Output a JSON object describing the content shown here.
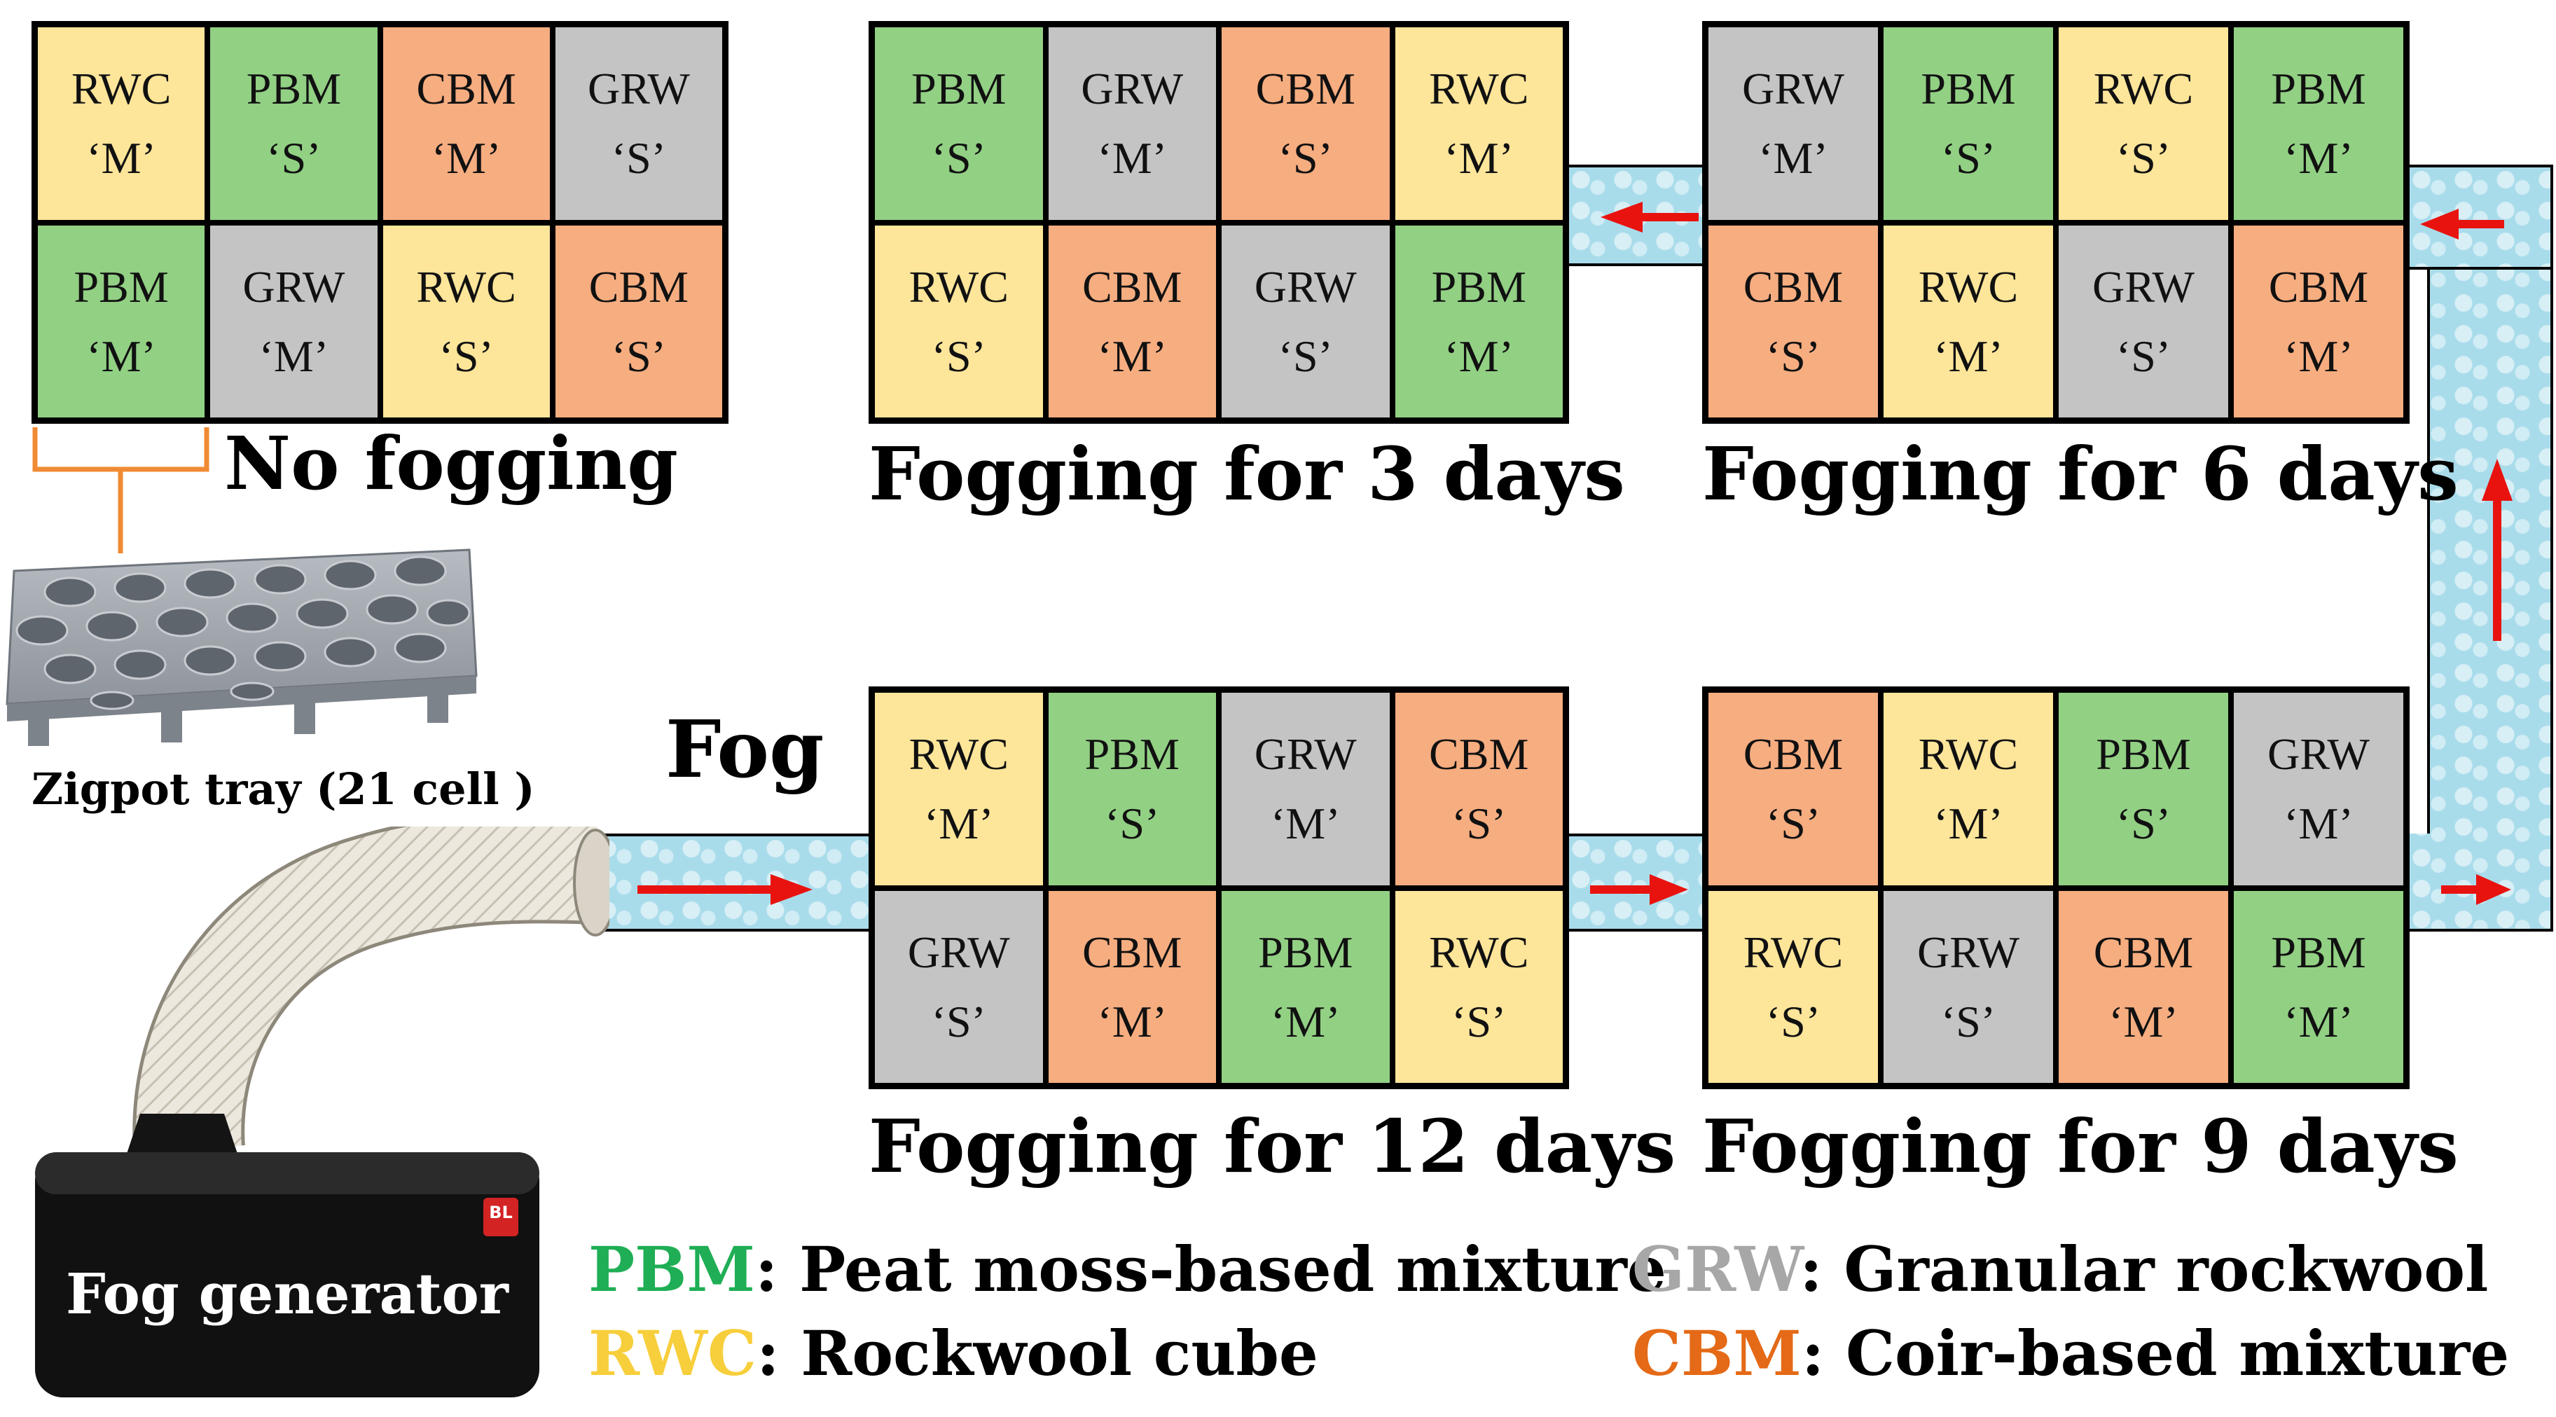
{
  "colors": {
    "PBM": "#92d084",
    "GRW": "#c4c4c4",
    "CBM": "#f6ad80",
    "RWC": "#fde59a",
    "pipe": "#a9dceb",
    "arrow": "#e8130f",
    "PBM_text": "#1fae55",
    "GRW_text": "#a7a7a7",
    "RWC_text": "#f7ce3b",
    "CBM_text": "#e46a17",
    "bracket": "#f08a33"
  },
  "panels": [
    {
      "id": "no-fogging",
      "title": "No fogging",
      "cells": [
        [
          "RWC",
          "‘M’"
        ],
        [
          "PBM",
          "‘S’"
        ],
        [
          "CBM",
          "‘M’"
        ],
        [
          "GRW",
          "‘S’"
        ],
        [
          "PBM",
          "‘M’"
        ],
        [
          "GRW",
          "‘M’"
        ],
        [
          "RWC",
          "‘S’"
        ],
        [
          "CBM",
          "‘S’"
        ]
      ]
    },
    {
      "id": "fog-3",
      "title": "Fogging for 3 days",
      "cells": [
        [
          "PBM",
          "‘S’"
        ],
        [
          "GRW",
          "‘M’"
        ],
        [
          "CBM",
          "‘S’"
        ],
        [
          "RWC",
          "‘M’"
        ],
        [
          "RWC",
          "‘S’"
        ],
        [
          "CBM",
          "‘M’"
        ],
        [
          "GRW",
          "‘S’"
        ],
        [
          "PBM",
          "‘M’"
        ]
      ]
    },
    {
      "id": "fog-6",
      "title": "Fogging for 6 days",
      "cells": [
        [
          "GRW",
          "‘M’"
        ],
        [
          "PBM",
          "‘S’"
        ],
        [
          "RWC",
          "‘S’"
        ],
        [
          "PBM",
          "‘M’"
        ],
        [
          "CBM",
          "‘S’"
        ],
        [
          "RWC",
          "‘M’"
        ],
        [
          "GRW",
          "‘S’"
        ],
        [
          "CBM",
          "‘M’"
        ]
      ]
    },
    {
      "id": "fog-12",
      "title": "Fogging for 12 days",
      "cells": [
        [
          "RWC",
          "‘M’"
        ],
        [
          "PBM",
          "‘S’"
        ],
        [
          "GRW",
          "‘M’"
        ],
        [
          "CBM",
          "‘S’"
        ],
        [
          "GRW",
          "‘S’"
        ],
        [
          "CBM",
          "‘M’"
        ],
        [
          "PBM",
          "‘M’"
        ],
        [
          "RWC",
          "‘S’"
        ]
      ]
    },
    {
      "id": "fog-9",
      "title": "Fogging for 9 days",
      "cells": [
        [
          "CBM",
          "‘S’"
        ],
        [
          "RWC",
          "‘M’"
        ],
        [
          "PBM",
          "‘S’"
        ],
        [
          "GRW",
          "‘M’"
        ],
        [
          "RWC",
          "‘S’"
        ],
        [
          "GRW",
          "‘S’"
        ],
        [
          "CBM",
          "‘M’"
        ],
        [
          "PBM",
          "‘M’"
        ]
      ]
    }
  ],
  "labels": {
    "fog": "Fog",
    "tray": "Zigpot tray (21 cell )",
    "generator": "Fog generator",
    "generator_badge": "BL"
  },
  "legend": [
    {
      "code": "PBM",
      "text": ": Peat moss-based mixture"
    },
    {
      "code": "RWC",
      "text": ": Rockwool cube"
    },
    {
      "code": "GRW",
      "text": ": Granular rockwool"
    },
    {
      "code": "CBM",
      "text": ": Coir-based mixture"
    }
  ]
}
